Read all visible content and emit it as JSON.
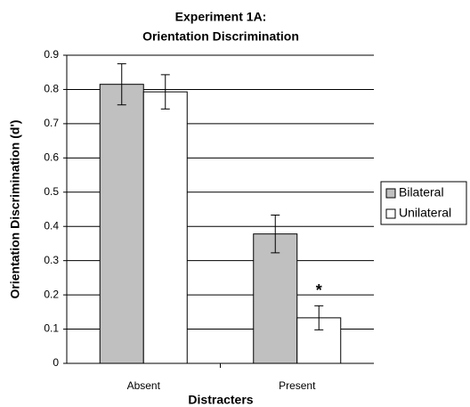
{
  "chart_data": {
    "type": "bar",
    "title": "Experiment 1A:",
    "subtitle": "Orientation Discrimination",
    "y_label": "Orientation Discrimination (d')",
    "x_label": "Distracters",
    "categories": [
      "Absent",
      "Present"
    ],
    "series": [
      {
        "name": "Bilateral",
        "color": "#c0c0c0",
        "values": [
          0.815,
          0.378
        ],
        "errors": [
          0.06,
          0.055
        ]
      },
      {
        "name": "Unilateral",
        "color": "#ffffff",
        "values": [
          0.793,
          0.133
        ],
        "errors": [
          0.05,
          0.035
        ]
      }
    ],
    "annotations": [
      "*"
    ],
    "ylim": [
      0,
      0.9
    ],
    "yticks": [
      0,
      0.1,
      0.2,
      0.3,
      0.4,
      0.5,
      0.6,
      0.7,
      0.8,
      0.9
    ],
    "grid": true,
    "legend": "right"
  }
}
